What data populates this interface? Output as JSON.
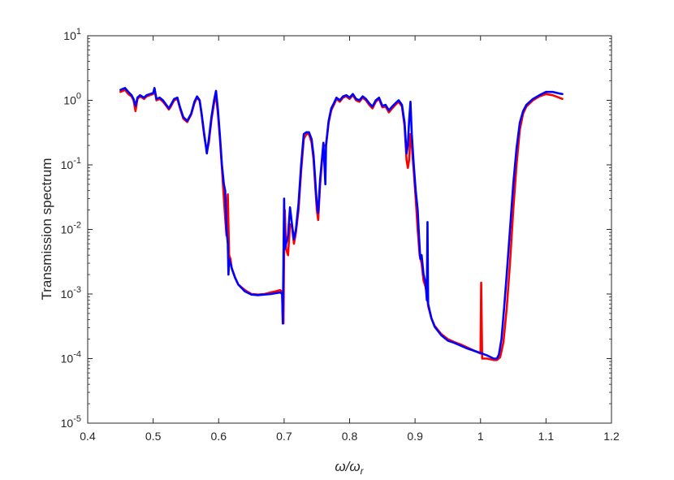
{
  "chart_data": {
    "type": "line",
    "title": "",
    "xlabel": "ω/ω",
    "xlabel_sub": "r",
    "ylabel": "Transmission spectrum",
    "xlim": [
      0.4,
      1.2
    ],
    "ylim": [
      1e-05,
      10
    ],
    "yscale": "log",
    "grid": false,
    "legend": "none",
    "x_ticks": [
      "0.4",
      "0.5",
      "0.6",
      "0.7",
      "0.8",
      "0.9",
      "1",
      "1.1",
      "1.2"
    ],
    "y_ticks": [
      {
        "base": "10",
        "exp": "-5"
      },
      {
        "base": "10",
        "exp": "-4"
      },
      {
        "base": "10",
        "exp": "-3"
      },
      {
        "base": "10",
        "exp": "-2"
      },
      {
        "base": "10",
        "exp": "-1"
      },
      {
        "base": "10",
        "exp": "0"
      },
      {
        "base": "10",
        "exp": "1"
      }
    ],
    "series": [
      {
        "color": "#ff0000",
        "points": [
          [
            0.45,
            1.35
          ],
          [
            0.457,
            1.45
          ],
          [
            0.462,
            1.25
          ],
          [
            0.467,
            1.15
          ],
          [
            0.47,
            1.0
          ],
          [
            0.473,
            0.68
          ],
          [
            0.476,
            1.05
          ],
          [
            0.48,
            1.15
          ],
          [
            0.486,
            1.05
          ],
          [
            0.49,
            1.15
          ],
          [
            0.495,
            1.2
          ],
          [
            0.5,
            1.25
          ],
          [
            0.502,
            1.5
          ],
          [
            0.505,
            1.0
          ],
          [
            0.51,
            1.05
          ],
          [
            0.515,
            0.95
          ],
          [
            0.52,
            0.82
          ],
          [
            0.524,
            0.72
          ],
          [
            0.527,
            0.8
          ],
          [
            0.532,
            1.0
          ],
          [
            0.537,
            1.05
          ],
          [
            0.541,
            0.75
          ],
          [
            0.546,
            0.52
          ],
          [
            0.552,
            0.46
          ],
          [
            0.558,
            0.6
          ],
          [
            0.563,
            0.9
          ],
          [
            0.567,
            1.1
          ],
          [
            0.571,
            0.98
          ],
          [
            0.574,
            0.6
          ],
          [
            0.578,
            0.28
          ],
          [
            0.582,
            0.16
          ],
          [
            0.585,
            0.22
          ],
          [
            0.589,
            0.5
          ],
          [
            0.593,
            0.9
          ],
          [
            0.596,
            1.2
          ],
          [
            0.599,
            0.6
          ],
          [
            0.602,
            0.25
          ],
          [
            0.605,
            0.09
          ],
          [
            0.608,
            0.03
          ],
          [
            0.61,
            0.015
          ],
          [
            0.612,
            0.008
          ],
          [
            0.614,
            0.035
          ],
          [
            0.616,
            0.004
          ],
          [
            0.618,
            0.0035
          ],
          [
            0.62,
            0.0025
          ],
          [
            0.625,
            0.0018
          ],
          [
            0.63,
            0.0014
          ],
          [
            0.64,
            0.00115
          ],
          [
            0.65,
            0.001
          ],
          [
            0.66,
            0.00098
          ],
          [
            0.67,
            0.001
          ],
          [
            0.68,
            0.00106
          ],
          [
            0.69,
            0.00112
          ],
          [
            0.694,
            0.00115
          ],
          [
            0.697,
            0.00108
          ],
          [
            0.698,
            0.0004
          ],
          [
            0.699,
            0.00035
          ],
          [
            0.7,
            0.005
          ],
          [
            0.701,
            0.02
          ],
          [
            0.703,
            0.005
          ],
          [
            0.706,
            0.004
          ],
          [
            0.709,
            0.012
          ],
          [
            0.712,
            0.011
          ],
          [
            0.715,
            0.006
          ],
          [
            0.718,
            0.009
          ],
          [
            0.722,
            0.02
          ],
          [
            0.726,
            0.08
          ],
          [
            0.73,
            0.25
          ],
          [
            0.734,
            0.3
          ],
          [
            0.738,
            0.3
          ],
          [
            0.742,
            0.22
          ],
          [
            0.745,
            0.12
          ],
          [
            0.748,
            0.04
          ],
          [
            0.75,
            0.02
          ],
          [
            0.752,
            0.014
          ],
          [
            0.755,
            0.05
          ],
          [
            0.758,
            0.12
          ],
          [
            0.76,
            0.2
          ],
          [
            0.764,
            0.2
          ],
          [
            0.768,
            0.45
          ],
          [
            0.772,
            0.7
          ],
          [
            0.776,
            0.85
          ],
          [
            0.78,
            1.05
          ],
          [
            0.785,
            0.95
          ],
          [
            0.79,
            1.1
          ],
          [
            0.795,
            1.15
          ],
          [
            0.8,
            1.05
          ],
          [
            0.805,
            1.2
          ],
          [
            0.81,
            1.0
          ],
          [
            0.815,
            0.95
          ],
          [
            0.82,
            1.1
          ],
          [
            0.825,
            1.0
          ],
          [
            0.83,
            0.85
          ],
          [
            0.835,
            0.75
          ],
          [
            0.84,
            0.95
          ],
          [
            0.845,
            1.05
          ],
          [
            0.85,
            0.78
          ],
          [
            0.855,
            0.8
          ],
          [
            0.86,
            0.65
          ],
          [
            0.865,
            0.75
          ],
          [
            0.87,
            0.85
          ],
          [
            0.875,
            0.95
          ],
          [
            0.88,
            0.8
          ],
          [
            0.884,
            0.4
          ],
          [
            0.887,
            0.12
          ],
          [
            0.889,
            0.09
          ],
          [
            0.891,
            0.12
          ],
          [
            0.893,
            0.3
          ],
          [
            0.895,
            0.2
          ],
          [
            0.898,
            0.08
          ],
          [
            0.901,
            0.03
          ],
          [
            0.904,
            0.01
          ],
          [
            0.907,
            0.004
          ],
          [
            0.91,
            0.003
          ],
          [
            0.913,
            0.0016
          ],
          [
            0.916,
            0.0013
          ],
          [
            0.918,
            0.001
          ],
          [
            0.92,
            0.00065
          ],
          [
            0.925,
            0.00042
          ],
          [
            0.93,
            0.00032
          ],
          [
            0.94,
            0.00024
          ],
          [
            0.95,
            0.0002
          ],
          [
            0.96,
            0.00018
          ],
          [
            0.97,
            0.000165
          ],
          [
            0.98,
            0.000148
          ],
          [
            0.99,
            0.000133
          ],
          [
            0.998,
            0.000122
          ],
          [
            1.0,
            0.00012
          ],
          [
            1.001,
            0.0015
          ],
          [
            1.0025,
            0.0001
          ],
          [
            1.005,
            0.0001
          ],
          [
            1.01,
            0.0001
          ],
          [
            1.02,
            9.5e-05
          ],
          [
            1.025,
            9.5e-05
          ],
          [
            1.03,
            0.000105
          ],
          [
            1.035,
            0.00018
          ],
          [
            1.04,
            0.0006
          ],
          [
            1.045,
            0.003
          ],
          [
            1.05,
            0.02
          ],
          [
            1.055,
            0.1
          ],
          [
            1.06,
            0.35
          ],
          [
            1.065,
            0.62
          ],
          [
            1.07,
            0.8
          ],
          [
            1.08,
            1.0
          ],
          [
            1.09,
            1.15
          ],
          [
            1.1,
            1.25
          ],
          [
            1.11,
            1.2
          ],
          [
            1.12,
            1.1
          ],
          [
            1.125,
            1.05
          ]
        ]
      },
      {
        "color": "#0000ff",
        "points": [
          [
            0.45,
            1.45
          ],
          [
            0.457,
            1.55
          ],
          [
            0.462,
            1.35
          ],
          [
            0.467,
            1.2
          ],
          [
            0.47,
            1.05
          ],
          [
            0.473,
            0.82
          ],
          [
            0.476,
            1.1
          ],
          [
            0.48,
            1.2
          ],
          [
            0.486,
            1.1
          ],
          [
            0.49,
            1.2
          ],
          [
            0.495,
            1.25
          ],
          [
            0.5,
            1.3
          ],
          [
            0.502,
            1.55
          ],
          [
            0.505,
            1.05
          ],
          [
            0.51,
            1.1
          ],
          [
            0.515,
            1.0
          ],
          [
            0.52,
            0.85
          ],
          [
            0.524,
            0.75
          ],
          [
            0.527,
            0.85
          ],
          [
            0.532,
            1.05
          ],
          [
            0.537,
            1.1
          ],
          [
            0.541,
            0.78
          ],
          [
            0.546,
            0.55
          ],
          [
            0.552,
            0.48
          ],
          [
            0.558,
            0.62
          ],
          [
            0.563,
            0.95
          ],
          [
            0.567,
            1.15
          ],
          [
            0.571,
            1.0
          ],
          [
            0.574,
            0.62
          ],
          [
            0.578,
            0.3
          ],
          [
            0.582,
            0.15
          ],
          [
            0.585,
            0.25
          ],
          [
            0.589,
            0.55
          ],
          [
            0.593,
            1.0
          ],
          [
            0.596,
            1.4
          ],
          [
            0.599,
            0.7
          ],
          [
            0.602,
            0.28
          ],
          [
            0.605,
            0.1
          ],
          [
            0.608,
            0.05
          ],
          [
            0.61,
            0.04
          ],
          [
            0.612,
            0.01
          ],
          [
            0.614,
            0.006
          ],
          [
            0.615,
            0.002
          ],
          [
            0.616,
            0.0035
          ],
          [
            0.618,
            0.003
          ],
          [
            0.62,
            0.0025
          ],
          [
            0.625,
            0.0018
          ],
          [
            0.63,
            0.0014
          ],
          [
            0.64,
            0.0011
          ],
          [
            0.65,
            0.00098
          ],
          [
            0.66,
            0.00096
          ],
          [
            0.67,
            0.00098
          ],
          [
            0.68,
            0.001
          ],
          [
            0.69,
            0.00104
          ],
          [
            0.694,
            0.00106
          ],
          [
            0.697,
            0.001
          ],
          [
            0.698,
            0.00035
          ],
          [
            0.699,
            0.0035
          ],
          [
            0.7,
            0.03
          ],
          [
            0.701,
            0.005
          ],
          [
            0.703,
            0.006
          ],
          [
            0.706,
            0.008
          ],
          [
            0.709,
            0.022
          ],
          [
            0.712,
            0.012
          ],
          [
            0.715,
            0.007
          ],
          [
            0.718,
            0.01
          ],
          [
            0.722,
            0.025
          ],
          [
            0.726,
            0.1
          ],
          [
            0.73,
            0.3
          ],
          [
            0.734,
            0.32
          ],
          [
            0.738,
            0.32
          ],
          [
            0.742,
            0.25
          ],
          [
            0.745,
            0.14
          ],
          [
            0.748,
            0.05
          ],
          [
            0.75,
            0.025
          ],
          [
            0.752,
            0.018
          ],
          [
            0.755,
            0.06
          ],
          [
            0.758,
            0.13
          ],
          [
            0.76,
            0.22
          ],
          [
            0.763,
            0.05
          ],
          [
            0.764,
            0.2
          ],
          [
            0.768,
            0.48
          ],
          [
            0.772,
            0.75
          ],
          [
            0.776,
            0.9
          ],
          [
            0.78,
            1.1
          ],
          [
            0.785,
            1.0
          ],
          [
            0.79,
            1.15
          ],
          [
            0.795,
            1.2
          ],
          [
            0.8,
            1.1
          ],
          [
            0.805,
            1.25
          ],
          [
            0.81,
            1.05
          ],
          [
            0.815,
            1.0
          ],
          [
            0.82,
            1.15
          ],
          [
            0.825,
            1.05
          ],
          [
            0.83,
            0.9
          ],
          [
            0.835,
            0.8
          ],
          [
            0.84,
            1.0
          ],
          [
            0.845,
            1.1
          ],
          [
            0.85,
            0.82
          ],
          [
            0.855,
            0.85
          ],
          [
            0.86,
            0.7
          ],
          [
            0.865,
            0.8
          ],
          [
            0.87,
            0.9
          ],
          [
            0.875,
            1.0
          ],
          [
            0.88,
            0.85
          ],
          [
            0.884,
            0.45
          ],
          [
            0.887,
            0.15
          ],
          [
            0.889,
            0.2
          ],
          [
            0.891,
            0.5
          ],
          [
            0.893,
            0.95
          ],
          [
            0.895,
            0.3
          ],
          [
            0.898,
            0.1
          ],
          [
            0.901,
            0.04
          ],
          [
            0.904,
            0.02
          ],
          [
            0.906,
            0.008
          ],
          [
            0.908,
            0.0035
          ],
          [
            0.91,
            0.004
          ],
          [
            0.913,
            0.002
          ],
          [
            0.916,
            0.0015
          ],
          [
            0.918,
            0.0008
          ],
          [
            0.919,
            0.013
          ],
          [
            0.92,
            0.0007
          ],
          [
            0.925,
            0.00042
          ],
          [
            0.93,
            0.00031
          ],
          [
            0.94,
            0.00023
          ],
          [
            0.95,
            0.00019
          ],
          [
            0.96,
            0.000175
          ],
          [
            0.97,
            0.000158
          ],
          [
            0.98,
            0.000143
          ],
          [
            0.99,
            0.000132
          ],
          [
            1.0,
            0.000122
          ],
          [
            1.01,
            0.000112
          ],
          [
            1.02,
            0.0001
          ],
          [
            1.025,
            0.0001
          ],
          [
            1.028,
            0.000115
          ],
          [
            1.032,
            0.0002
          ],
          [
            1.036,
            0.0006
          ],
          [
            1.04,
            0.002
          ],
          [
            1.045,
            0.01
          ],
          [
            1.05,
            0.05
          ],
          [
            1.055,
            0.18
          ],
          [
            1.06,
            0.45
          ],
          [
            1.065,
            0.68
          ],
          [
            1.07,
            0.85
          ],
          [
            1.08,
            1.05
          ],
          [
            1.09,
            1.2
          ],
          [
            1.1,
            1.35
          ],
          [
            1.11,
            1.35
          ],
          [
            1.12,
            1.28
          ],
          [
            1.125,
            1.25
          ]
        ]
      }
    ]
  }
}
